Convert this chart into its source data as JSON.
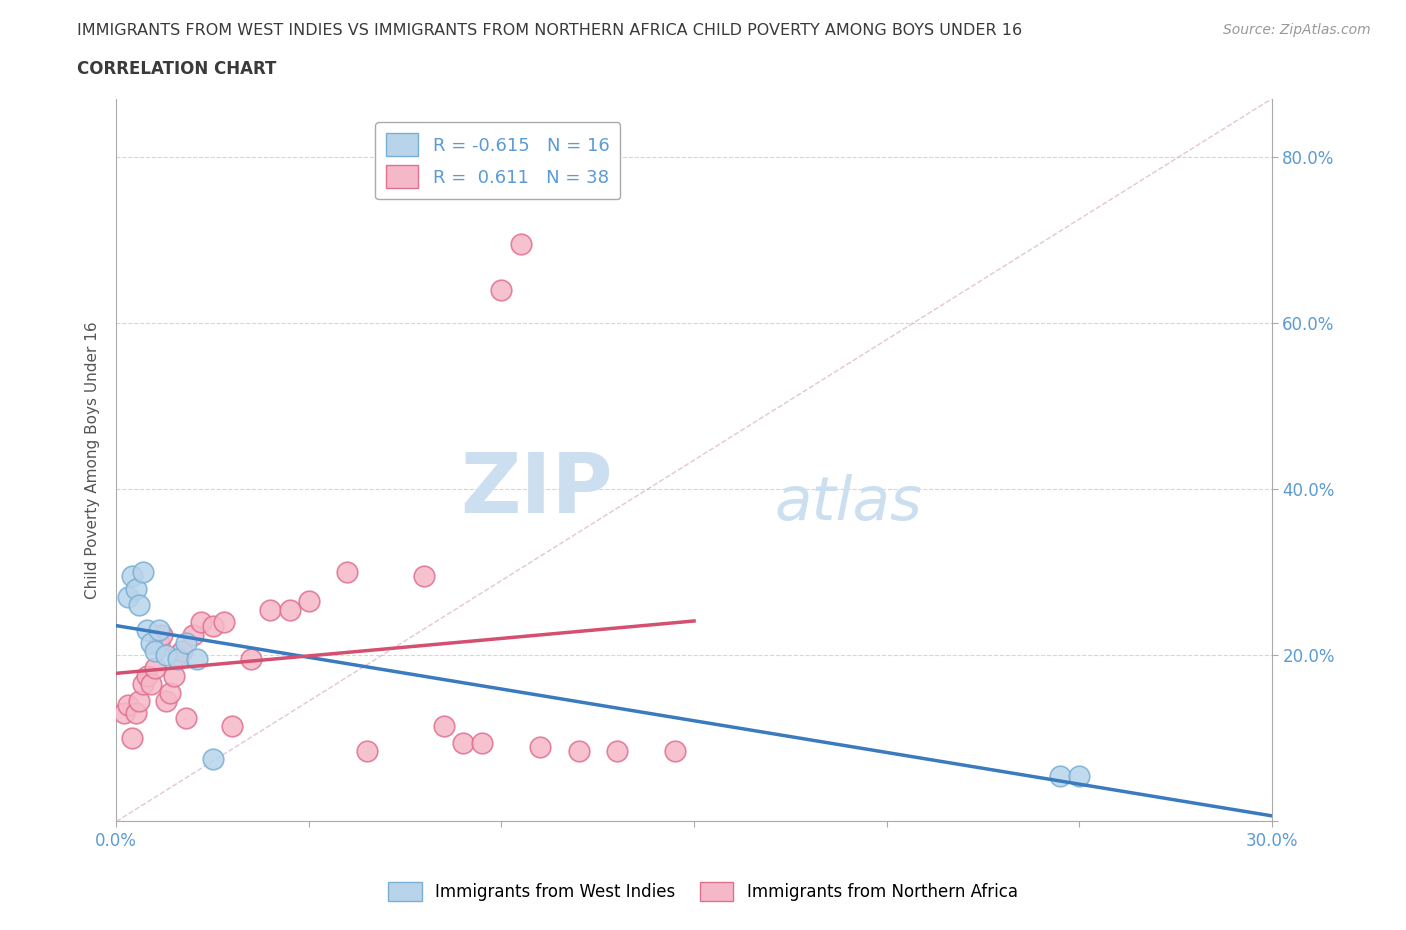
{
  "title_line1": "IMMIGRANTS FROM WEST INDIES VS IMMIGRANTS FROM NORTHERN AFRICA CHILD POVERTY AMONG BOYS UNDER 16",
  "title_line2": "CORRELATION CHART",
  "source": "Source: ZipAtlas.com",
  "ylabel": "Child Poverty Among Boys Under 16",
  "xlim": [
    0.0,
    0.3
  ],
  "ylim": [
    0.0,
    0.87
  ],
  "xtick_positions": [
    0.0,
    0.05,
    0.1,
    0.15,
    0.2,
    0.25,
    0.3
  ],
  "xtick_labels": [
    "0.0%",
    "",
    "",
    "",
    "",
    "",
    "30.0%"
  ],
  "ytick_positions": [
    0.0,
    0.2,
    0.4,
    0.6,
    0.8
  ],
  "ytick_labels_right": [
    "",
    "20.0%",
    "40.0%",
    "60.0%",
    "80.0%"
  ],
  "grid_color": "#cccccc",
  "background_color": "#ffffff",
  "title_color": "#3a3a3a",
  "axis_color": "#5b9bd5",
  "watermark": "ZIPatlas",
  "watermark_color": "#ccdff0",
  "west_indies_color": "#b8d4ea",
  "west_indies_edge": "#7aafd4",
  "northern_africa_color": "#f5b8c8",
  "northern_africa_edge": "#e07090",
  "west_indies_R": -0.615,
  "west_indies_N": 16,
  "northern_africa_R": 0.611,
  "northern_africa_N": 38,
  "west_indies_x": [
    0.003,
    0.004,
    0.005,
    0.006,
    0.007,
    0.008,
    0.009,
    0.01,
    0.011,
    0.013,
    0.016,
    0.018,
    0.021,
    0.025,
    0.245,
    0.25
  ],
  "west_indies_y": [
    0.27,
    0.295,
    0.28,
    0.26,
    0.3,
    0.23,
    0.215,
    0.205,
    0.23,
    0.2,
    0.195,
    0.215,
    0.195,
    0.075,
    0.055,
    0.055
  ],
  "northern_africa_x": [
    0.002,
    0.003,
    0.004,
    0.005,
    0.006,
    0.007,
    0.008,
    0.009,
    0.01,
    0.011,
    0.012,
    0.013,
    0.014,
    0.015,
    0.016,
    0.017,
    0.018,
    0.02,
    0.022,
    0.025,
    0.028,
    0.03,
    0.035,
    0.04,
    0.045,
    0.05,
    0.06,
    0.065,
    0.08,
    0.085,
    0.09,
    0.095,
    0.1,
    0.105,
    0.11,
    0.12,
    0.13,
    0.145
  ],
  "northern_africa_y": [
    0.13,
    0.14,
    0.1,
    0.13,
    0.145,
    0.165,
    0.175,
    0.165,
    0.185,
    0.215,
    0.225,
    0.145,
    0.155,
    0.175,
    0.2,
    0.205,
    0.125,
    0.225,
    0.24,
    0.235,
    0.24,
    0.115,
    0.195,
    0.255,
    0.255,
    0.265,
    0.3,
    0.085,
    0.295,
    0.115,
    0.095,
    0.095,
    0.64,
    0.695,
    0.09,
    0.085,
    0.085,
    0.085
  ],
  "ref_line_color": "#d4a0b0",
  "blue_trend_color": "#3a7abf",
  "pink_trend_color": "#d45070",
  "legend_border_color": "#aaaaaa",
  "legend_text_color": "#5b9bd5"
}
